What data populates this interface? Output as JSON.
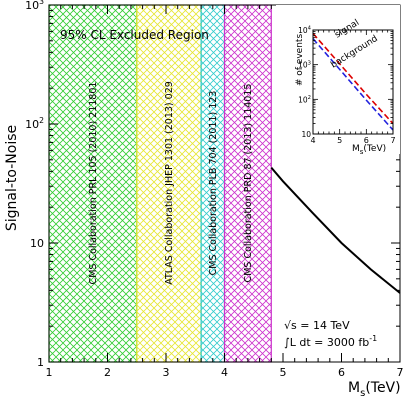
{
  "chart_data": [
    {
      "type": "line",
      "ylabel": "Signal-to-Noise",
      "xlabel_main": "M",
      "xlabel_sub": "s",
      "xlabel_unit": "(TeV)",
      "xlim": [
        1,
        7
      ],
      "ylim": [
        1,
        1000
      ],
      "yscale": "log",
      "x_ticks": [
        "1",
        "2",
        "3",
        "4",
        "5",
        "6",
        "7"
      ],
      "y_ticks": [
        {
          "v": 1,
          "label": "1"
        },
        {
          "v": 10,
          "label": "10"
        },
        {
          "v": 100,
          "label": "10",
          "exp": "2"
        },
        {
          "v": 1000,
          "label": "10",
          "exp": "3"
        }
      ],
      "excluded_title": "95% CL Excluded Region",
      "bands": [
        {
          "x0": 1.0,
          "x1": 2.5,
          "color": "#33cc33",
          "label": "CMS Collaboration PRL 105 (2010) 211801"
        },
        {
          "x0": 2.5,
          "x1": 3.6,
          "color": "#e6e633",
          "label": "ATLAS Collaboration JHEP 1301 (2013) 029"
        },
        {
          "x0": 3.6,
          "x1": 4.0,
          "color": "#33cccc",
          "label": "CMS Collaboration PLB 704 (2011) 123"
        },
        {
          "x0": 4.0,
          "x1": 4.8,
          "color": "#cc33cc",
          "label": "CMS Collaboration PRD 87 (2013) 114015"
        }
      ],
      "series": [
        {
          "color": "#000000",
          "points": [
            [
              4.8,
              43
            ],
            [
              5.0,
              33
            ],
            [
              5.5,
              18
            ],
            [
              6.0,
              10
            ],
            [
              6.5,
              6
            ],
            [
              7.0,
              3.8
            ]
          ]
        }
      ],
      "annotations": {
        "energy_prefix": "√s = ",
        "energy_value": "14 TeV",
        "lumi_prefix": "∫L dt = ",
        "lumi_value": "3000 fb",
        "lumi_exp": "-1"
      }
    },
    {
      "type": "line",
      "ylabel": "# of events",
      "xlabel_main": "M",
      "xlabel_sub": "s",
      "xlabel_unit": "(TeV)",
      "xlim": [
        4,
        7
      ],
      "ylim": [
        10,
        10000
      ],
      "yscale": "log",
      "x_ticks": [
        "4",
        "5",
        "6",
        "7"
      ],
      "y_ticks": [
        {
          "v": 10,
          "label": "10"
        },
        {
          "v": 100,
          "label": "10",
          "exp": "2"
        },
        {
          "v": 1000,
          "label": "10",
          "exp": "3"
        },
        {
          "v": 10000,
          "label": "10",
          "exp": "4"
        }
      ],
      "series": [
        {
          "name": "signal",
          "color": "#dd0000",
          "points": [
            [
              4.0,
              8000
            ],
            [
              5.0,
              1050
            ],
            [
              6.0,
              140
            ],
            [
              7.0,
              20
            ]
          ]
        },
        {
          "name": "background",
          "color": "#2222dd",
          "points": [
            [
              4.0,
              5600
            ],
            [
              5.0,
              730
            ],
            [
              6.0,
              95
            ],
            [
              7.0,
              13
            ]
          ]
        }
      ]
    }
  ]
}
